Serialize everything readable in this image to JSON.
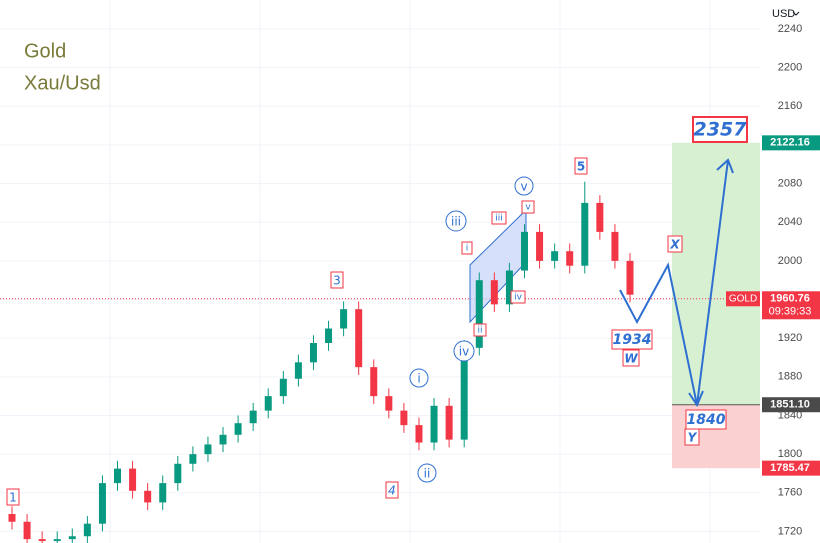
{
  "header": {
    "title": "Gold",
    "subtitle": "Xau/Usd"
  },
  "chart_data": {
    "type": "candlestick",
    "currency": "USD",
    "ylim": [
      1708,
      2270
    ],
    "yticks": [
      1720,
      1760,
      1800,
      1840,
      1880,
      1920,
      1960,
      2000,
      2040,
      2080,
      2120,
      2160,
      2200,
      2240
    ],
    "grid": true,
    "up_color": "#089981",
    "down_color": "#f23645",
    "open": [
      1738,
      1730,
      1712,
      1710,
      1712,
      1715,
      1728,
      1770,
      1785,
      1762,
      1750,
      1770,
      1790,
      1800,
      1810,
      1820,
      1832,
      1845,
      1860,
      1878,
      1895,
      1915,
      1930,
      1950,
      1890,
      1860,
      1845,
      1830,
      1812,
      1850,
      1815,
      1910,
      1980,
      1955,
      1990,
      2030,
      2000,
      2010,
      1995,
      2060,
      2030,
      2000
    ],
    "high": [
      1746,
      1738,
      1720,
      1720,
      1723,
      1736,
      1778,
      1793,
      1793,
      1770,
      1778,
      1798,
      1808,
      1818,
      1828,
      1840,
      1853,
      1868,
      1886,
      1903,
      1923,
      1938,
      1958,
      1958,
      1898,
      1868,
      1853,
      1838,
      1858,
      1858,
      1918,
      1988,
      1988,
      1998,
      2038,
      2038,
      2018,
      2018,
      2082,
      2068,
      2038,
      2008
    ],
    "low": [
      1722,
      1704,
      1702,
      1702,
      1704,
      1707,
      1720,
      1762,
      1754,
      1742,
      1742,
      1762,
      1782,
      1792,
      1802,
      1812,
      1824,
      1837,
      1852,
      1870,
      1887,
      1907,
      1922,
      1882,
      1852,
      1837,
      1822,
      1804,
      1804,
      1807,
      1807,
      1902,
      1947,
      1947,
      1982,
      1992,
      1992,
      1987,
      1987,
      2022,
      1992,
      1957
    ],
    "close": [
      1730,
      1712,
      1710,
      1712,
      1715,
      1728,
      1770,
      1785,
      1762,
      1750,
      1770,
      1790,
      1800,
      1810,
      1820,
      1832,
      1845,
      1860,
      1878,
      1895,
      1915,
      1930,
      1950,
      1890,
      1860,
      1845,
      1830,
      1812,
      1850,
      1815,
      1910,
      1980,
      1955,
      1990,
      2030,
      2000,
      2010,
      1995,
      2060,
      2030,
      2000,
      1965
    ],
    "price_levels": [
      {
        "value": 2122.16,
        "color": "#089981"
      },
      {
        "name": "GOLD",
        "value": 1960.76,
        "timer": "09:39:33",
        "color": "#f23645"
      },
      {
        "value": 1851.1,
        "label": "1851.10",
        "color": "#4a4a4a"
      },
      {
        "value": 1785.47,
        "color": "#f23645"
      }
    ],
    "annotations": [
      "1",
      "3",
      "4",
      "5",
      "i",
      "ii",
      "iii",
      "iv",
      "v",
      "i",
      "ii",
      "iii",
      "iv",
      "v",
      "X",
      "W",
      "Y",
      "1934",
      "1840",
      "2357"
    ]
  }
}
